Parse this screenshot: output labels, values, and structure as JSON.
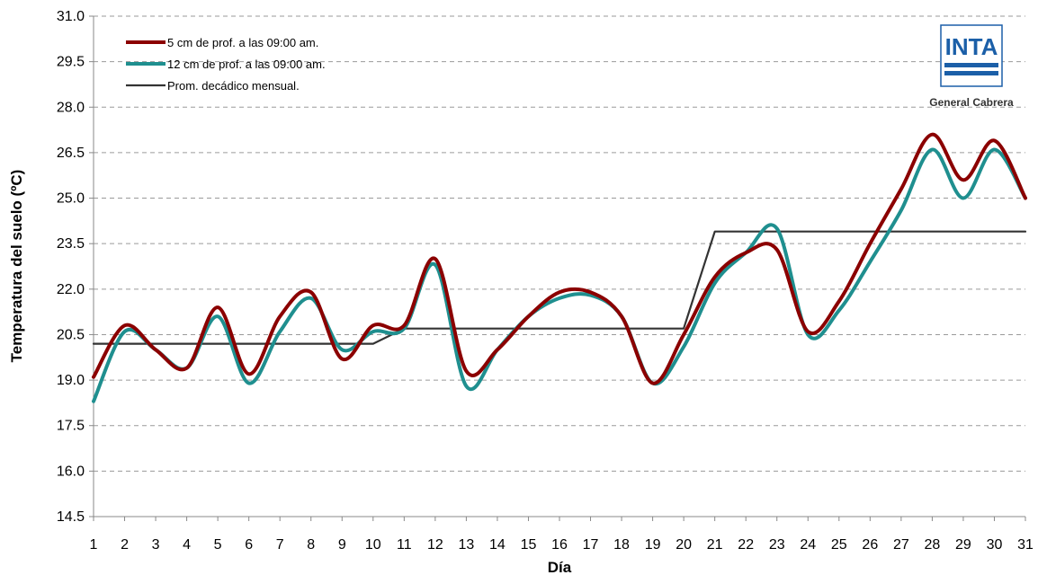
{
  "chart_data": {
    "type": "line",
    "title": "",
    "xlabel": "Día",
    "ylabel": "Temperatura del suelo (ºC)",
    "xlim": [
      1,
      31
    ],
    "ylim": [
      14.5,
      31.0
    ],
    "yticks": [
      14.5,
      16.0,
      17.5,
      19.0,
      20.5,
      22.0,
      23.5,
      25.0,
      26.5,
      28.0,
      29.5,
      31.0
    ],
    "ytick_labels": [
      "14.5",
      "16.0",
      "17.5",
      "19.0",
      "20.5",
      "22.0",
      "23.5",
      "25.0",
      "26.5",
      "28.0",
      "29.5",
      "31.0"
    ],
    "x": [
      1,
      2,
      3,
      4,
      5,
      6,
      7,
      8,
      9,
      10,
      11,
      12,
      13,
      14,
      15,
      16,
      17,
      18,
      19,
      20,
      21,
      22,
      23,
      24,
      25,
      26,
      27,
      28,
      29,
      30,
      31
    ],
    "xtick_labels": [
      "1",
      "2",
      "3",
      "4",
      "5",
      "6",
      "7",
      "8",
      "9",
      "10",
      "11",
      "12",
      "13",
      "14",
      "15",
      "16",
      "17",
      "18",
      "19",
      "20",
      "21",
      "22",
      "23",
      "24",
      "25",
      "26",
      "27",
      "28",
      "29",
      "30",
      "31"
    ],
    "grid": "horizontal dashed",
    "legend_position": "top-left",
    "series": [
      {
        "name": "5 cm de prof. a las 09:00 am.",
        "color": "#8b0000",
        "values": [
          19.1,
          20.8,
          20.0,
          19.4,
          21.4,
          19.2,
          21.1,
          21.9,
          19.7,
          20.8,
          20.8,
          23.0,
          19.3,
          20.0,
          21.1,
          21.9,
          21.9,
          21.1,
          18.9,
          20.5,
          22.4,
          23.2,
          23.3,
          20.6,
          21.6,
          23.5,
          25.3,
          27.1,
          25.6,
          26.9,
          25.0
        ]
      },
      {
        "name": "12 cm de prof. a las 09:00 am.",
        "color": "#1f8f8f",
        "values": [
          18.3,
          20.6,
          20.0,
          19.4,
          21.1,
          18.9,
          20.6,
          21.7,
          20.0,
          20.6,
          20.7,
          22.8,
          18.8,
          20.0,
          21.1,
          21.7,
          21.8,
          21.1,
          18.9,
          20.1,
          22.2,
          23.2,
          24.0,
          20.5,
          21.3,
          22.9,
          24.6,
          26.6,
          25.0,
          26.6,
          25.0
        ]
      },
      {
        "name": "Prom. decádico mensual.",
        "color": "#333333",
        "x": [
          1,
          10,
          11,
          20,
          21,
          31
        ],
        "values": [
          20.2,
          20.2,
          20.7,
          20.7,
          23.9,
          23.9
        ]
      }
    ]
  },
  "logo": {
    "text": "INTA",
    "subtitle": "General Cabrera"
  }
}
